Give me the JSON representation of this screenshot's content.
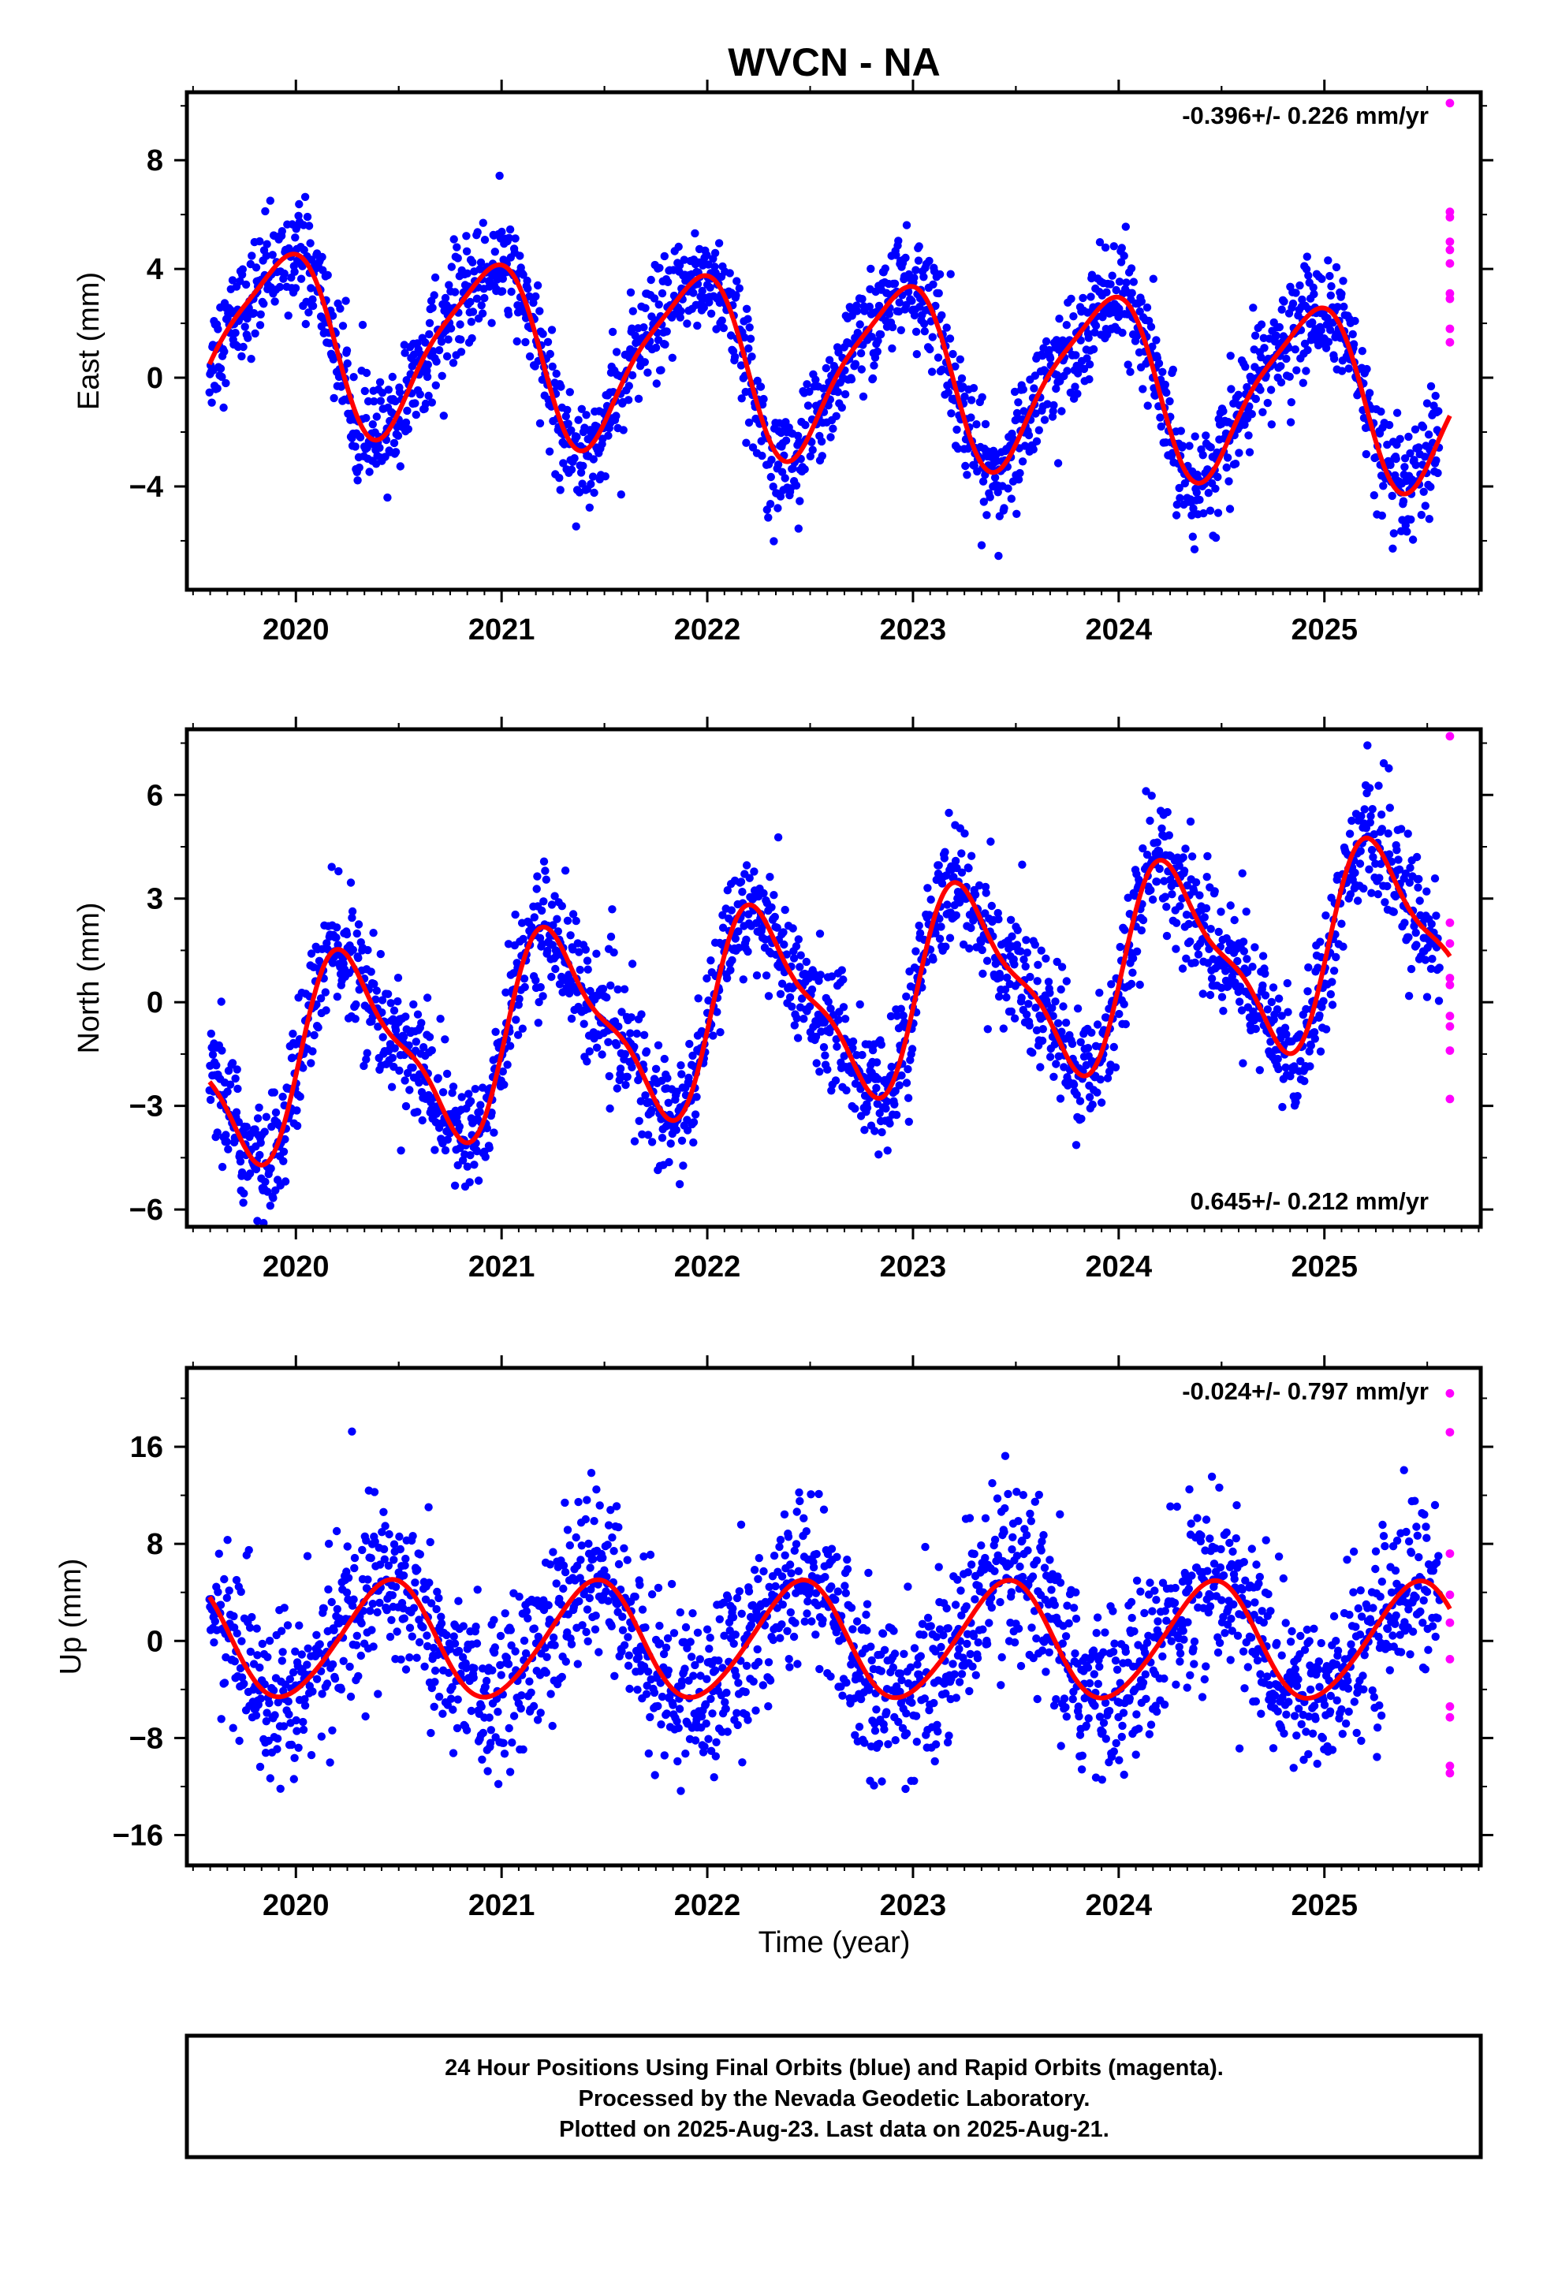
{
  "title": "WVCN - NA",
  "xlabel": "Time (year)",
  "x_ticks": [
    "2020",
    "2021",
    "2022",
    "2023",
    "2024",
    "2025"
  ],
  "colors": {
    "final": "#0000ff",
    "rapid": "#ff00ff",
    "model": "#ff0000",
    "axes": "#000000"
  },
  "chart_data": [
    {
      "type": "scatter",
      "panel": "east",
      "ylabel": "East (mm)",
      "rate": "-0.396+/- 0.226 mm/yr",
      "rate_position": "top-right",
      "xlim": [
        2019.47,
        2025.76
      ],
      "ylim": [
        -7.8,
        10.5
      ],
      "y_ticks": [
        -4,
        0,
        4,
        8
      ],
      "model": {
        "a1": 2.8,
        "b1": -1.4,
        "a2": 0.3,
        "b2": 0.6,
        "offset": 0.45,
        "rate": -0.396,
        "t0": 2022.5
      },
      "noise": 1.0,
      "rapid_y": [
        10.1,
        6.1,
        5.9,
        5.0,
        4.7,
        4.2,
        3.1,
        2.9,
        1.8,
        1.3
      ]
    },
    {
      "type": "scatter",
      "panel": "north",
      "ylabel": "North (mm)",
      "rate": "0.645+/- 0.212 mm/yr",
      "rate_position": "bottom-right",
      "xlim": [
        2019.47,
        2025.76
      ],
      "ylim": [
        -6.5,
        7.9
      ],
      "y_ticks": [
        -6,
        -3,
        0,
        3,
        6
      ],
      "model": {
        "a1": -0.3,
        "b1": 2.6,
        "a2": -0.2,
        "b2": 0.8,
        "offset": 0.0,
        "rate": 0.645,
        "t0": 2022.5
      },
      "noise": 0.9,
      "rapid_y": [
        7.7,
        2.3,
        1.7,
        0.7,
        0.5,
        -0.4,
        -0.7,
        -1.4,
        -2.8
      ]
    },
    {
      "type": "scatter",
      "panel": "up",
      "ylabel": "Up (mm)",
      "rate": "-0.024+/- 0.797 mm/yr",
      "rate_position": "top-right",
      "xlim": [
        2019.47,
        2025.76
      ],
      "ylim": [
        -18.5,
        22.5
      ],
      "y_ticks": [
        -16,
        -8,
        0,
        8,
        16
      ],
      "model": {
        "a1": -4.5,
        "b1": 1.6,
        "a2": 0.4,
        "b2": 0.2,
        "offset": 0.0,
        "rate": -0.024,
        "t0": 2022.5
      },
      "noise": 3.6,
      "rapid_y": [
        20.4,
        17.2,
        7.2,
        3.8,
        1.5,
        -1.5,
        -5.4,
        -6.3,
        -10.3,
        -10.9
      ]
    }
  ],
  "footer": {
    "line1": "24 Hour Positions Using Final Orbits (blue) and Rapid Orbits (magenta).",
    "line2": "Processed by the Nevada Geodetic Laboratory.",
    "line3": "Plotted on 2025-Aug-23. Last data on 2025-Aug-21."
  }
}
